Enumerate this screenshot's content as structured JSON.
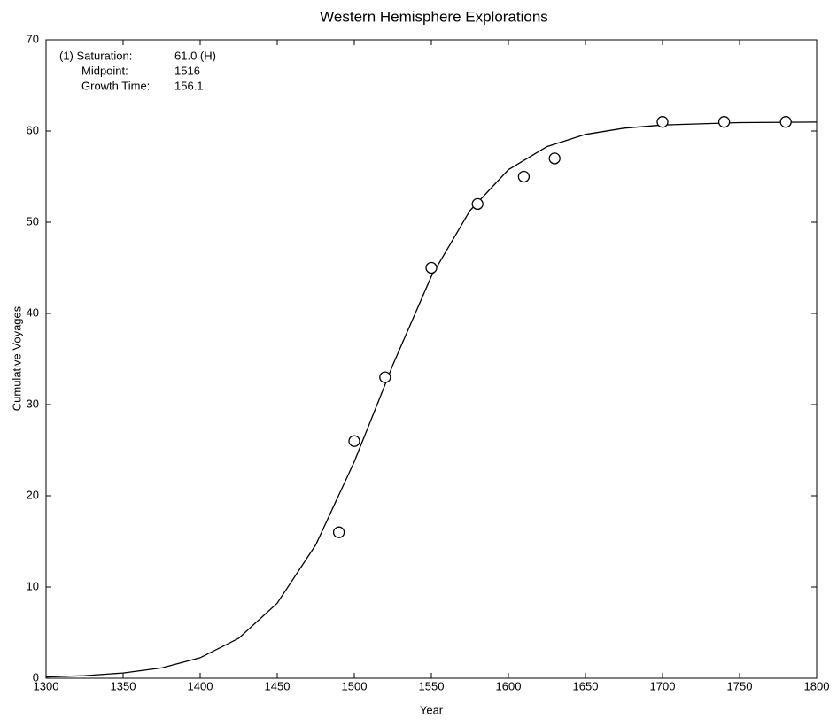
{
  "chart_data": {
    "type": "scatter",
    "title": "Western Hemisphere Explorations",
    "x_label": "Year",
    "y_label": "Cumulative Voyages",
    "annotations": [
      {
        "label": "(1) Saturation:",
        "value": "61.0 (H)"
      },
      {
        "label": "Midpoint:",
        "value": "1516"
      },
      {
        "label": "Growth Time:",
        "value": "156.1"
      }
    ],
    "xlim": [
      1300,
      1800
    ],
    "xticks": [
      1300,
      1350,
      1400,
      1450,
      1500,
      1550,
      1600,
      1650,
      1700,
      1750,
      1800
    ],
    "ylim": [
      0,
      70
    ],
    "yticks": [
      0,
      10,
      20,
      30,
      40,
      50,
      60,
      70
    ],
    "series": [
      {
        "kind": "points",
        "color": "#000000",
        "x": [
          1490,
          1500,
          1520,
          1550,
          1580,
          1610,
          1630,
          1700,
          1740,
          1780
        ],
        "values": [
          16,
          26,
          33,
          45,
          52,
          55,
          57,
          61,
          61,
          61
        ]
      },
      {
        "kind": "line",
        "color": "#000000",
        "x": [
          1300,
          1325,
          1350,
          1375,
          1400,
          1425,
          1450,
          1475,
          1500,
          1516,
          1525,
          1550,
          1575,
          1600,
          1625,
          1650,
          1675,
          1700,
          1750,
          1800
        ],
        "values": [
          0.14,
          0.28,
          0.57,
          1.13,
          2.24,
          4.37,
          8.23,
          14.62,
          23.74,
          30.5,
          34.34,
          44.07,
          51.26,
          55.76,
          58.29,
          59.63,
          60.31,
          60.66,
          60.92,
          60.98
        ]
      }
    ]
  }
}
